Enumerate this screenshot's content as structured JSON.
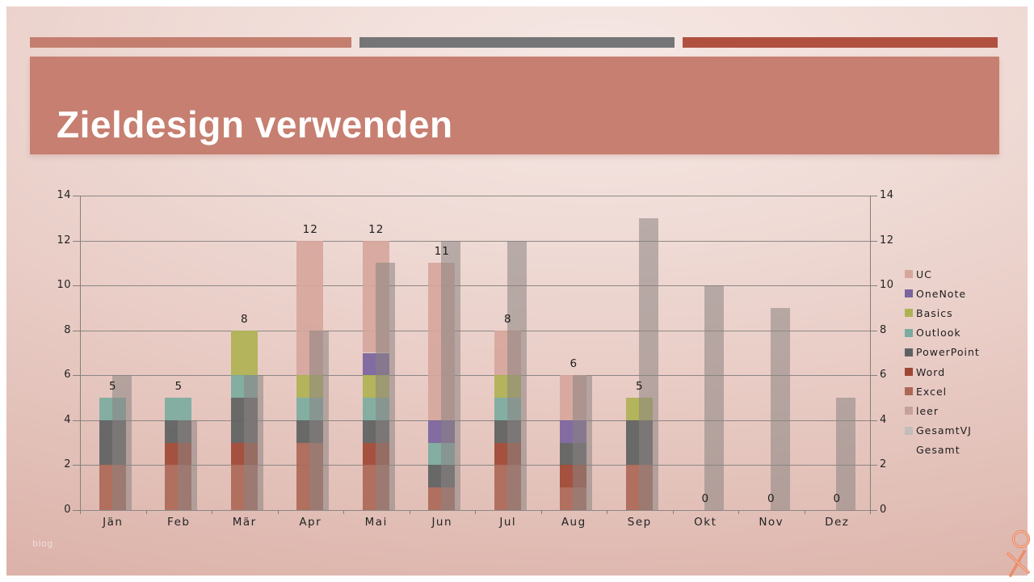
{
  "slide": {
    "title": "Zieldesign verwenden",
    "watermark": "blog",
    "colors": {
      "banner": "#c67f70",
      "stripe_salmon": "#c47e70",
      "stripe_gray": "#757577",
      "stripe_red": "#b05140",
      "background_light": "#f6e8e5",
      "background_dark": "#dcb2a9",
      "logo": "#e98e6c"
    }
  },
  "chart_data": {
    "type": "bar",
    "subtype": "stacked-columns-with-overlapping-total-bar",
    "title": "",
    "xlabel": "",
    "ylabel": "",
    "ylim": [
      0,
      14
    ],
    "ytick_step": 2,
    "yticks": [
      0,
      2,
      4,
      6,
      8,
      10,
      12,
      14
    ],
    "grid": true,
    "dual_value_axis": true,
    "legend_position": "right",
    "categories": [
      "Jän",
      "Feb",
      "Mär",
      "Apr",
      "Mai",
      "Jun",
      "Jul",
      "Aug",
      "Sep",
      "Okt",
      "Nov",
      "Dez"
    ],
    "stack_order_bottom_to_top": [
      "leer",
      "Excel",
      "Word",
      "PowerPoint",
      "Outlook",
      "Basics",
      "OneNote",
      "UC"
    ],
    "series": [
      {
        "name": "UC",
        "role": "stack",
        "color": "#d6a69c",
        "values": [
          0,
          0,
          0,
          6,
          5,
          7,
          2,
          2,
          0,
          0,
          0,
          0
        ]
      },
      {
        "name": "OneNote",
        "role": "stack",
        "color": "#7a649e",
        "values": [
          0,
          0,
          0,
          0,
          1,
          1,
          0,
          1,
          0,
          0,
          0,
          0
        ]
      },
      {
        "name": "Basics",
        "role": "stack",
        "color": "#afb254",
        "values": [
          0,
          0,
          2,
          1,
          1,
          0,
          1,
          0,
          1,
          0,
          0,
          0
        ]
      },
      {
        "name": "Outlook",
        "role": "stack",
        "color": "#7caba0",
        "values": [
          1,
          1,
          1,
          1,
          1,
          1,
          1,
          0,
          0,
          0,
          0,
          0
        ]
      },
      {
        "name": "PowerPoint",
        "role": "stack",
        "color": "#5e6161",
        "values": [
          2,
          1,
          2,
          1,
          1,
          1,
          1,
          1,
          2,
          0,
          0,
          0
        ]
      },
      {
        "name": "Word",
        "role": "stack",
        "color": "#9e4834",
        "values": [
          0,
          1,
          1,
          0,
          1,
          0,
          1,
          1,
          0,
          0,
          0,
          0
        ]
      },
      {
        "name": "Excel",
        "role": "stack",
        "color": "#ac6857",
        "values": [
          2,
          2,
          2,
          3,
          2,
          1,
          2,
          1,
          2,
          0,
          0,
          0
        ]
      },
      {
        "name": "leer",
        "role": "stack",
        "color": "#c8a19d",
        "values": [
          0,
          0,
          0,
          0,
          0,
          0,
          0,
          0,
          0,
          0,
          0,
          0
        ]
      },
      {
        "name": "GesamtVJ",
        "role": "overlay",
        "color": "#c2bcba",
        "values": [
          6,
          4,
          6,
          8,
          11,
          12,
          12,
          6,
          13,
          10,
          9,
          5
        ]
      },
      {
        "name": "Gesamt",
        "role": "labels",
        "color": null,
        "values": [
          5,
          5,
          8,
          12,
          12,
          11,
          8,
          6,
          5,
          0,
          0,
          0
        ]
      }
    ]
  }
}
